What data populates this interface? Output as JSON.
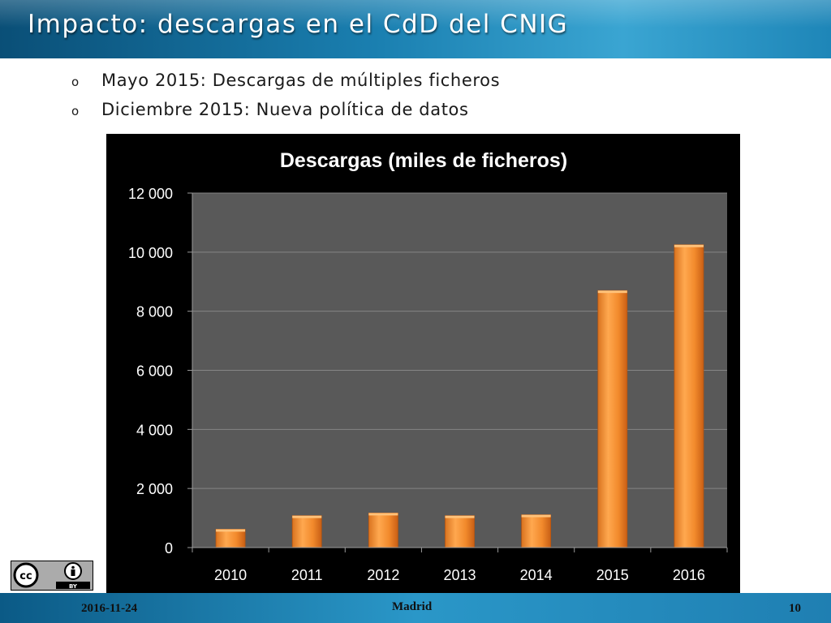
{
  "slide": {
    "title": "Impacto: descargas en el CdD del CNIG",
    "bullets": [
      {
        "marker": "o",
        "text": "Mayo 2015: Descargas de múltiples ficheros"
      },
      {
        "marker": "o",
        "text": "Diciembre 2015: Nueva política de datos"
      }
    ]
  },
  "footer": {
    "date": "2016-11-24",
    "location": "Madrid",
    "page": "10"
  },
  "license": {
    "icons": [
      "cc-icon",
      "attribution-icon"
    ],
    "badge_text": "BY"
  },
  "colors": {
    "title_bar": "#1a7fb0",
    "chart_bg": "#000000",
    "plot_bg": "#595959",
    "bar_fill": "#f7953b",
    "bar_edge": "#c95f15",
    "grid": "#7f7f7f"
  },
  "chart_data": {
    "type": "bar",
    "title": "Descargas (miles de ficheros)",
    "xlabel": "",
    "ylabel": "",
    "categories": [
      "2010",
      "2011",
      "2012",
      "2013",
      "2014",
      "2015",
      "2016"
    ],
    "values": [
      620,
      1080,
      1170,
      1080,
      1110,
      8700,
      10250
    ],
    "ylim": [
      0,
      12000
    ],
    "yticks": [
      0,
      2000,
      4000,
      6000,
      8000,
      10000,
      12000
    ],
    "ytick_labels": [
      "0",
      "2 000",
      "4 000",
      "6 000",
      "8 000",
      "10 000",
      "12 000"
    ],
    "grid": true,
    "legend": "none"
  }
}
